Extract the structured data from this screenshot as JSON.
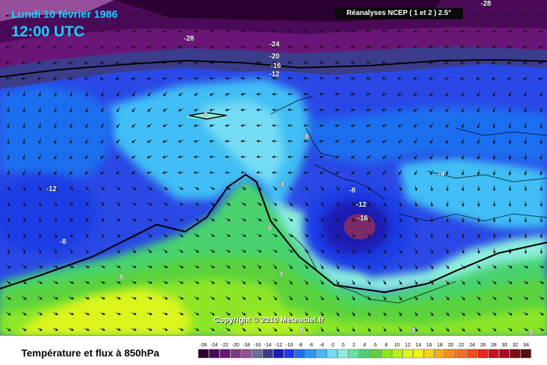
{
  "header": {
    "date": "Lundi 10 février 1986",
    "time": "12:00 UTC",
    "source": "Réanalyses NCEP ( 1 et 2 ) 2.5°"
  },
  "copyright": "Copyright © 2010 Meteociel.fr",
  "footer": {
    "title": "Température et flux à 850hPa",
    "legend_values": [
      "-26",
      "-24",
      "-22",
      "-20",
      "-18",
      "-16",
      "-14",
      "-12",
      "-10",
      "-8",
      "-6",
      "-4",
      "-2",
      "0",
      "2",
      "4",
      "6",
      "8",
      "10",
      "12",
      "14",
      "16",
      "18",
      "20",
      "22",
      "24",
      "26",
      "28",
      "30",
      "32",
      "34"
    ],
    "legend_colors": [
      "#2c0030",
      "#4b0a58",
      "#6a1676",
      "#7d3a87",
      "#944e9a",
      "#6e6e9e",
      "#3c3c8c",
      "#1e1eb4",
      "#1e3ce6",
      "#1e6ef0",
      "#2896f5",
      "#40bef5",
      "#73dcf5",
      "#8cf0dc",
      "#64e6a0",
      "#46d26e",
      "#5ad23c",
      "#8ce628",
      "#b4f01e",
      "#dcf51e",
      "#f5f01e",
      "#f5d21e",
      "#f5aa1e",
      "#f58c1e",
      "#f56e1e",
      "#f54b1e",
      "#e6281e",
      "#c8141e",
      "#aa0a1e",
      "#820a14",
      "#5a0a0a"
    ]
  },
  "map": {
    "isotherm_labels": [
      "-28",
      "-28",
      "-24",
      "-20",
      "-16",
      "-12",
      "0",
      "-8",
      "-4",
      "-4",
      "-12",
      "-8",
      "-8",
      "-12",
      "-16",
      "0",
      "4",
      "8",
      "8",
      "8",
      "8"
    ]
  }
}
